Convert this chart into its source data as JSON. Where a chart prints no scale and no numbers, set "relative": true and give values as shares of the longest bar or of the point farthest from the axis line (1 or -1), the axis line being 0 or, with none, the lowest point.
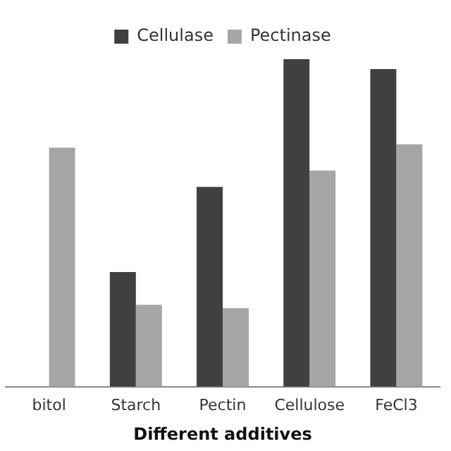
{
  "chart_data": {
    "type": "bar",
    "xlabel": "Different additives",
    "categories": [
      "bitol",
      "Starch",
      "Pectin",
      "Cellulose",
      "FeCl3"
    ],
    "relative": true,
    "legend": "top",
    "grid": false,
    "series": [
      {
        "name": "Cellulase",
        "color": "#404040",
        "values": [
          null,
          0.35,
          0.61,
          1,
          0.97
        ]
      },
      {
        "name": "Pectinase",
        "color": "#a6a6a6",
        "values": [
          0.73,
          0.25,
          0.24,
          0.66,
          0.74
        ]
      }
    ]
  }
}
